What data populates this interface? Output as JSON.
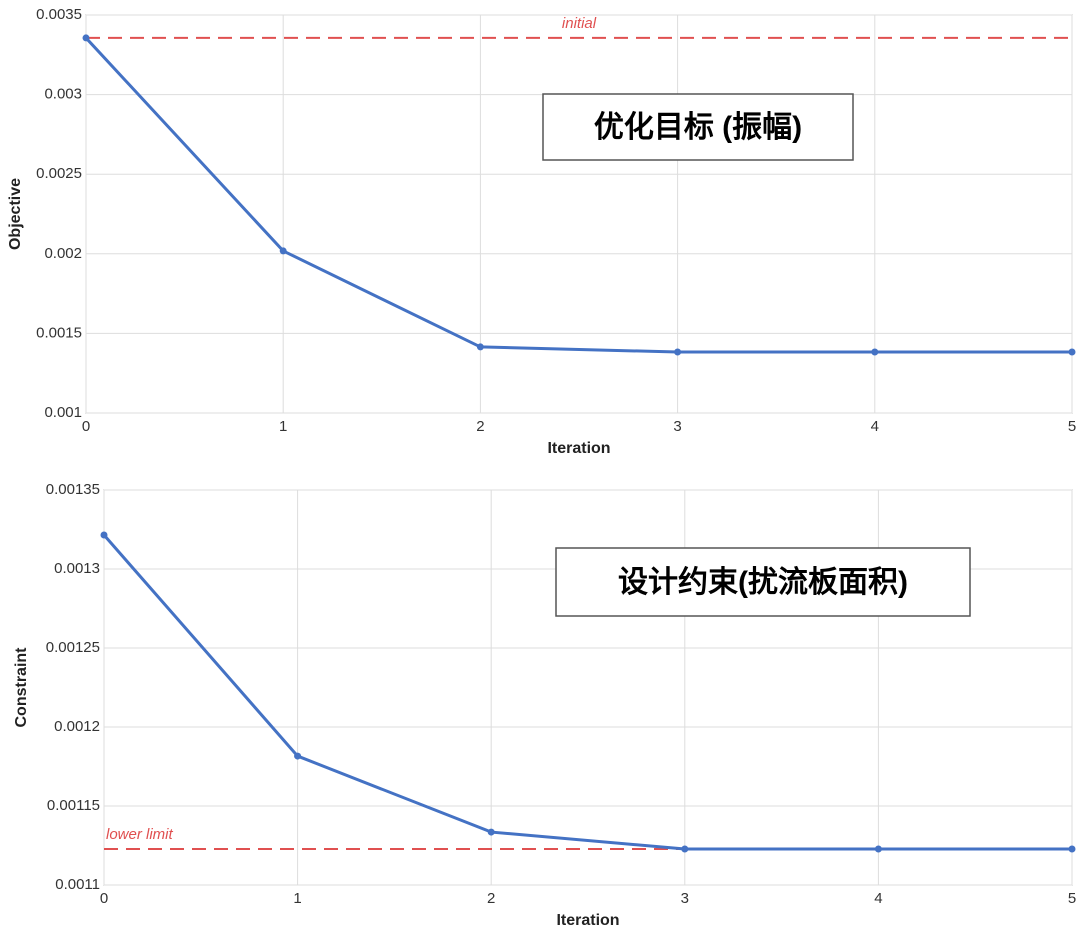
{
  "chart_data": [
    {
      "type": "line",
      "x_label": "Iteration",
      "y_label": "Objective",
      "x": [
        0,
        1,
        2,
        3,
        4,
        5
      ],
      "values": [
        0.003356,
        0.002018,
        0.001415,
        0.001383,
        0.001383,
        0.001383
      ],
      "color": "#4472c4",
      "xlim": [
        0,
        5
      ],
      "xticks": [
        0,
        1,
        2,
        3,
        4,
        5
      ],
      "ylim": [
        0.001,
        0.0035
      ],
      "yticks": [
        0.001,
        0.0015,
        0.002,
        0.0025,
        0.003,
        0.0035
      ],
      "grid": true,
      "reference_line": {
        "value": 0.003356,
        "label": "initial",
        "color": "#e05050"
      },
      "annotation": "优化目标 (振幅)"
    },
    {
      "type": "line",
      "x_label": "Iteration",
      "y_label": "Constraint",
      "x": [
        0,
        1,
        2,
        3,
        4,
        5
      ],
      "values": [
        0.0013215,
        0.0011816,
        0.0011335,
        0.0011228,
        0.0011228,
        0.0011228
      ],
      "color": "#4472c4",
      "xlim": [
        0,
        5
      ],
      "xticks": [
        0,
        1,
        2,
        3,
        4,
        5
      ],
      "ylim": [
        0.0011,
        0.00135
      ],
      "yticks": [
        0.0011,
        0.00115,
        0.0012,
        0.00125,
        0.0013,
        0.00135
      ],
      "grid": true,
      "reference_line": {
        "value": 0.0011228,
        "label": "lower limit",
        "color": "#e05050"
      },
      "annotation": "设计约束(扰流板面积)"
    }
  ]
}
